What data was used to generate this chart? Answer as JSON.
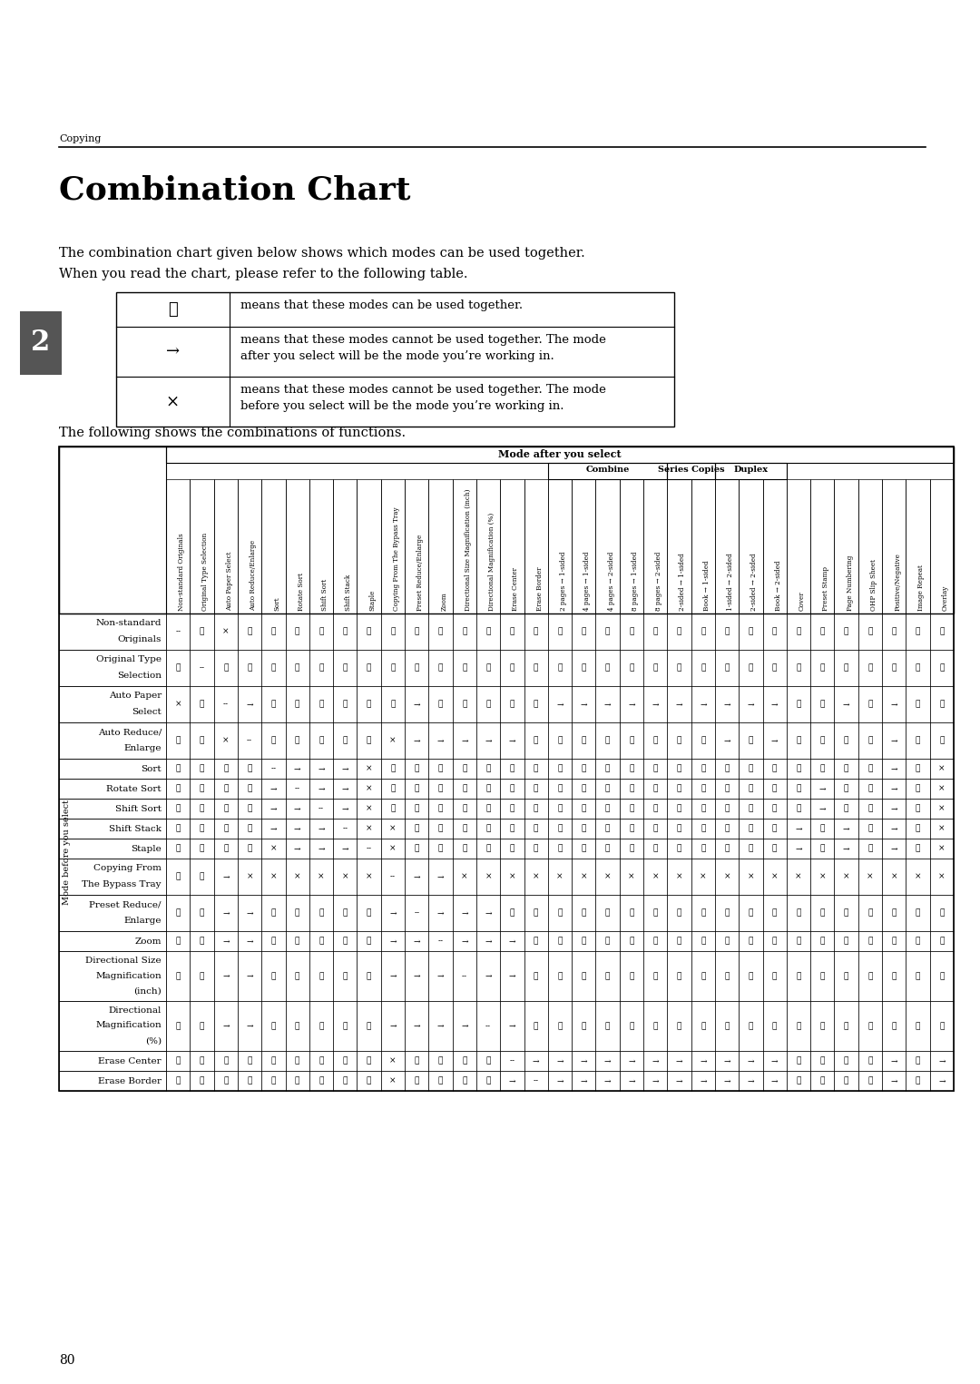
{
  "title": "Combination Chart",
  "subtitle_line1": "The combination chart given below shows which modes can be used together.",
  "subtitle_line2": "When you read the chart, please refer to the following table.",
  "header_label": "Copying",
  "page_number": "80",
  "chapter_number": "2",
  "following_text": "The following shows the combinations of functions.",
  "legend_rows": [
    {
      "symbol": "☆",
      "description1": "means that these modes can be used together.",
      "description2": ""
    },
    {
      "symbol": "→",
      "description1": "means that these modes cannot be used together. The mode",
      "description2": "after you select will be the mode you’re working in."
    },
    {
      "symbol": "×",
      "description1": "means that these modes cannot be used together. The mode",
      "description2": "before you select will be the mode you’re working in."
    }
  ],
  "col_header": "Mode after you select",
  "row_header": "Mode before you select",
  "columns": [
    "Non-standard Originals",
    "Original Type Selection",
    "Auto Paper Select",
    "Auto Reduce/Enlarge",
    "Sort",
    "Rotate Sort",
    "Shift Sort",
    "Shift Stack",
    "Staple",
    "Copying From The Bypass Tray",
    "Preset Reduce/Enlarge",
    "Zoom",
    "Directional Size Magnification (inch)",
    "Directional Magnification (%)",
    "Erase Center",
    "Erase Border",
    "2 pages → 1-sided",
    "4 pages → 1-sided",
    "4 pages → 2-sided",
    "8 pages → 1-sided",
    "8 pages → 2-sided",
    "2-sided → 1-sided",
    "Book → 1-sided",
    "1-sided → 2-sided",
    "2-sided → 2-sided",
    "Book → 2-sided",
    "Cover",
    "Preset Stamp",
    "Page Numbering",
    "OHP Slip Sheet",
    "Positive/Negative",
    "Image Repeat",
    "Overlay"
  ],
  "rows": [
    [
      "Non-standard",
      "Originals"
    ],
    [
      "Original Type",
      "Selection"
    ],
    [
      "Auto Paper",
      "Select"
    ],
    [
      "Auto Reduce/",
      "Enlarge"
    ],
    [
      "Sort"
    ],
    [
      "Rotate Sort"
    ],
    [
      "Shift Sort"
    ],
    [
      "Shift Stack"
    ],
    [
      "Staple"
    ],
    [
      "Copying From",
      "The Bypass Tray"
    ],
    [
      "Preset Reduce/",
      "Enlarge"
    ],
    [
      "Zoom"
    ],
    [
      "Directional Size",
      "Magnification",
      "(inch)"
    ],
    [
      "Directional",
      "Magnification",
      "(%)"
    ],
    [
      "Erase Center"
    ],
    [
      "Erase Border"
    ]
  ],
  "combine_cols": [
    16,
    17,
    18,
    19,
    20
  ],
  "series_group_cols": [
    21,
    22
  ],
  "duplex_group_cols": [
    23,
    24,
    25
  ],
  "data": [
    [
      "--",
      "☆",
      "×",
      "☆",
      "☆",
      "☆",
      "☆",
      "☆",
      "☆",
      "☆",
      "☆",
      "☆",
      "☆",
      "☆",
      "☆",
      "☆",
      "☆",
      "☆",
      "☆",
      "☆",
      "☆",
      "☆",
      "☆",
      "☆",
      "☆",
      "☆",
      "☆",
      "☆",
      "☆",
      "☆",
      "☆",
      "☆",
      "☆"
    ],
    [
      "☆",
      "--",
      "☆",
      "☆",
      "☆",
      "☆",
      "☆",
      "☆",
      "☆",
      "☆",
      "☆",
      "☆",
      "☆",
      "☆",
      "☆",
      "☆",
      "☆",
      "☆",
      "☆",
      "☆",
      "☆",
      "☆",
      "☆",
      "☆",
      "☆",
      "☆",
      "☆",
      "☆",
      "☆",
      "☆",
      "☆",
      "☆",
      "☆"
    ],
    [
      "×",
      "☆",
      "--",
      "→",
      "☆",
      "☆",
      "☆",
      "☆",
      "☆",
      "☆",
      "→",
      "☆",
      "☆",
      "☆",
      "☆",
      "☆",
      "→",
      "→",
      "→",
      "→",
      "→",
      "→",
      "→",
      "→",
      "→",
      "→",
      "☆",
      "☆",
      "→",
      "☆",
      "→",
      "☆",
      "☆"
    ],
    [
      "☆",
      "☆",
      "×",
      "--",
      "☆",
      "☆",
      "☆",
      "☆",
      "☆",
      "×",
      "→",
      "→",
      "→",
      "→",
      "→",
      "☆",
      "☆",
      "☆",
      "☆",
      "☆",
      "☆",
      "☆",
      "☆",
      "→",
      "☆",
      "→",
      "☆",
      "☆",
      "☆",
      "☆",
      "→",
      "☆",
      "☆"
    ],
    [
      "☆",
      "☆",
      "☆",
      "☆",
      "--",
      "→",
      "→",
      "→",
      "×",
      "☆",
      "☆",
      "☆",
      "☆",
      "☆",
      "☆",
      "☆",
      "☆",
      "☆",
      "☆",
      "☆",
      "☆",
      "☆",
      "☆",
      "☆",
      "☆",
      "☆",
      "☆",
      "☆",
      "☆",
      "☆",
      "→",
      "☆",
      "×"
    ],
    [
      "☆",
      "☆",
      "☆",
      "☆",
      "→",
      "--",
      "→",
      "→",
      "×",
      "☆",
      "☆",
      "☆",
      "☆",
      "☆",
      "☆",
      "☆",
      "☆",
      "☆",
      "☆",
      "☆",
      "☆",
      "☆",
      "☆",
      "☆",
      "☆",
      "☆",
      "☆",
      "→",
      "☆",
      "☆",
      "→",
      "☆",
      "×"
    ],
    [
      "☆",
      "☆",
      "☆",
      "☆",
      "→",
      "→",
      "--",
      "→",
      "×",
      "☆",
      "☆",
      "☆",
      "☆",
      "☆",
      "☆",
      "☆",
      "☆",
      "☆",
      "☆",
      "☆",
      "☆",
      "☆",
      "☆",
      "☆",
      "☆",
      "☆",
      "☆",
      "→",
      "☆",
      "☆",
      "→",
      "☆",
      "×"
    ],
    [
      "☆",
      "☆",
      "☆",
      "☆",
      "→",
      "→",
      "→",
      "--",
      "×",
      "×",
      "☆",
      "☆",
      "☆",
      "☆",
      "☆",
      "☆",
      "☆",
      "☆",
      "☆",
      "☆",
      "☆",
      "☆",
      "☆",
      "☆",
      "☆",
      "☆",
      "→",
      "☆",
      "→",
      "☆",
      "→",
      "☆",
      "×"
    ],
    [
      "☆",
      "☆",
      "☆",
      "☆",
      "×",
      "→",
      "→",
      "→",
      "--",
      "×",
      "☆",
      "☆",
      "☆",
      "☆",
      "☆",
      "☆",
      "☆",
      "☆",
      "☆",
      "☆",
      "☆",
      "☆",
      "☆",
      "☆",
      "☆",
      "☆",
      "→",
      "☆",
      "→",
      "☆",
      "→",
      "☆",
      "×"
    ],
    [
      "☆",
      "☆",
      "→",
      "×",
      "×",
      "×",
      "×",
      "×",
      "×",
      "--",
      "→",
      "→",
      "×",
      "×",
      "×",
      "×",
      "×",
      "×",
      "×",
      "×",
      "×",
      "×",
      "×",
      "×",
      "×",
      "×",
      "×",
      "×",
      "×",
      "×",
      "×",
      "×",
      "×"
    ],
    [
      "☆",
      "☆",
      "→",
      "→",
      "☆",
      "☆",
      "☆",
      "☆",
      "☆",
      "→",
      "--",
      "→",
      "→",
      "→",
      "☆",
      "☆",
      "☆",
      "☆",
      "☆",
      "☆",
      "☆",
      "☆",
      "☆",
      "☆",
      "☆",
      "☆",
      "☆",
      "☆",
      "☆",
      "☆",
      "☆",
      "☆",
      "☆"
    ],
    [
      "☆",
      "☆",
      "→",
      "→",
      "☆",
      "☆",
      "☆",
      "☆",
      "☆",
      "→",
      "→",
      "--",
      "→",
      "→",
      "→",
      "☆",
      "☆",
      "☆",
      "☆",
      "☆",
      "☆",
      "☆",
      "☆",
      "☆",
      "☆",
      "☆",
      "☆",
      "☆",
      "☆",
      "☆",
      "☆",
      "☆",
      "☆"
    ],
    [
      "☆",
      "☆",
      "→",
      "→",
      "☆",
      "☆",
      "☆",
      "☆",
      "☆",
      "→",
      "→",
      "→",
      "--",
      "→",
      "→",
      "☆",
      "☆",
      "☆",
      "☆",
      "☆",
      "☆",
      "☆",
      "☆",
      "☆",
      "☆",
      "☆",
      "☆",
      "☆",
      "☆",
      "☆",
      "☆",
      "☆",
      "☆"
    ],
    [
      "☆",
      "☆",
      "→",
      "→",
      "☆",
      "☆",
      "☆",
      "☆",
      "☆",
      "→",
      "→",
      "→",
      "→",
      "--",
      "→",
      "☆",
      "☆",
      "☆",
      "☆",
      "☆",
      "☆",
      "☆",
      "☆",
      "☆",
      "☆",
      "☆",
      "☆",
      "☆",
      "☆",
      "☆",
      "☆",
      "☆",
      "☆"
    ],
    [
      "☆",
      "☆",
      "☆",
      "☆",
      "☆",
      "☆",
      "☆",
      "☆",
      "☆",
      "×",
      "☆",
      "☆",
      "☆",
      "☆",
      "--",
      "→",
      "→",
      "→",
      "→",
      "→",
      "→",
      "→",
      "→",
      "→",
      "→",
      "→",
      "☆",
      "☆",
      "☆",
      "☆",
      "→",
      "☆",
      "→"
    ],
    [
      "☆",
      "☆",
      "☆",
      "☆",
      "☆",
      "☆",
      "☆",
      "☆",
      "☆",
      "×",
      "☆",
      "☆",
      "☆",
      "☆",
      "→",
      "--",
      "→",
      "→",
      "→",
      "→",
      "→",
      "→",
      "→",
      "→",
      "→",
      "→",
      "☆",
      "☆",
      "☆",
      "☆",
      "→",
      "☆",
      "→"
    ]
  ],
  "bg_color": "#ffffff",
  "table_border_color": "#000000",
  "chapter_bg": "#555555",
  "chapter_fg": "#ffffff"
}
